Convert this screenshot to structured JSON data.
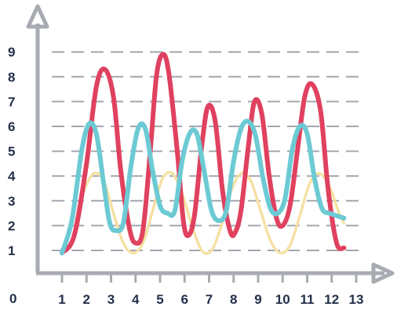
{
  "chart_data": {
    "type": "line",
    "title": "",
    "xlabel": "",
    "ylabel": "",
    "xlim": [
      0,
      13
    ],
    "ylim": [
      0,
      9
    ],
    "x_ticks": [
      1,
      2,
      3,
      4,
      5,
      6,
      7,
      8,
      9,
      10,
      11,
      12,
      13
    ],
    "y_ticks": [
      1,
      2,
      3,
      4,
      5,
      6,
      7,
      8,
      9
    ],
    "origin_label": "0",
    "grid": "horizontal-dashed",
    "legend": "none",
    "series": [
      {
        "color": "#e0415f",
        "points": [
          [
            1,
            0.9
          ],
          [
            1.5,
            1.6
          ],
          [
            2,
            4.5
          ],
          [
            2.4,
            7.6
          ],
          [
            2.75,
            8.3
          ],
          [
            3.1,
            7.2
          ],
          [
            3.4,
            4.2
          ],
          [
            3.75,
            1.9
          ],
          [
            4,
            1.3
          ],
          [
            4.3,
            1.8
          ],
          [
            4.6,
            5.0
          ],
          [
            4.85,
            8.0
          ],
          [
            5.1,
            8.9
          ],
          [
            5.35,
            8.2
          ],
          [
            5.7,
            5.0
          ],
          [
            5.95,
            2.2
          ],
          [
            6.15,
            1.6
          ],
          [
            6.4,
            2.4
          ],
          [
            6.7,
            5.2
          ],
          [
            6.95,
            6.8
          ],
          [
            7.25,
            6.2
          ],
          [
            7.55,
            3.4
          ],
          [
            7.85,
            1.8
          ],
          [
            8.05,
            1.7
          ],
          [
            8.3,
            2.6
          ],
          [
            8.6,
            5.2
          ],
          [
            8.85,
            7.0
          ],
          [
            9.15,
            6.5
          ],
          [
            9.45,
            4.0
          ],
          [
            9.75,
            2.3
          ],
          [
            10.0,
            2.0
          ],
          [
            10.3,
            2.8
          ],
          [
            10.6,
            5.0
          ],
          [
            10.9,
            7.2
          ],
          [
            11.2,
            7.7
          ],
          [
            11.55,
            6.6
          ],
          [
            11.85,
            3.5
          ],
          [
            12.2,
            1.3
          ],
          [
            12.5,
            1.1
          ]
        ]
      },
      {
        "color": "#6ccad4",
        "points": [
          [
            1,
            0.9
          ],
          [
            1.4,
            2.2
          ],
          [
            1.8,
            5.0
          ],
          [
            2.1,
            6.1
          ],
          [
            2.4,
            5.7
          ],
          [
            2.7,
            3.7
          ],
          [
            2.95,
            2.1
          ],
          [
            3.2,
            1.8
          ],
          [
            3.5,
            2.1
          ],
          [
            3.8,
            4.3
          ],
          [
            4.1,
            5.9
          ],
          [
            4.4,
            5.9
          ],
          [
            4.7,
            4.2
          ],
          [
            5.0,
            2.8
          ],
          [
            5.3,
            2.5
          ],
          [
            5.6,
            2.6
          ],
          [
            5.9,
            4.6
          ],
          [
            6.2,
            5.7
          ],
          [
            6.5,
            5.7
          ],
          [
            6.8,
            4.2
          ],
          [
            7.1,
            2.6
          ],
          [
            7.4,
            2.2
          ],
          [
            7.7,
            2.6
          ],
          [
            8.0,
            4.6
          ],
          [
            8.3,
            5.9
          ],
          [
            8.6,
            6.2
          ],
          [
            8.9,
            5.6
          ],
          [
            9.2,
            3.9
          ],
          [
            9.5,
            2.7
          ],
          [
            9.8,
            2.5
          ],
          [
            10.1,
            3.1
          ],
          [
            10.4,
            5.1
          ],
          [
            10.7,
            6.0
          ],
          [
            11.0,
            5.7
          ],
          [
            11.3,
            3.9
          ],
          [
            11.6,
            2.7
          ],
          [
            11.9,
            2.5
          ],
          [
            12.2,
            2.4
          ],
          [
            12.5,
            2.3
          ]
        ]
      },
      {
        "color": "#f5e1a4",
        "points": [
          [
            1.6,
            2.2
          ],
          [
            1.9,
            3.4
          ],
          [
            2.3,
            4.1
          ],
          [
            2.7,
            3.8
          ],
          [
            3.1,
            2.5
          ],
          [
            3.5,
            1.3
          ],
          [
            3.9,
            0.9
          ],
          [
            4.3,
            1.3
          ],
          [
            4.7,
            2.6
          ],
          [
            5.1,
            3.9
          ],
          [
            5.5,
            4.1
          ],
          [
            5.9,
            3.3
          ],
          [
            6.3,
            2.0
          ],
          [
            6.7,
            1.0
          ],
          [
            7.1,
            1.0
          ],
          [
            7.5,
            2.0
          ],
          [
            7.9,
            3.4
          ],
          [
            8.3,
            4.1
          ],
          [
            8.7,
            3.8
          ],
          [
            9.1,
            2.6
          ],
          [
            9.5,
            1.4
          ],
          [
            9.9,
            0.9
          ],
          [
            10.3,
            1.2
          ],
          [
            10.7,
            2.4
          ],
          [
            11.1,
            3.7
          ],
          [
            11.5,
            4.1
          ],
          [
            11.9,
            3.6
          ],
          [
            12.3,
            2.5
          ],
          [
            12.5,
            2.1
          ]
        ]
      }
    ]
  },
  "colors": {
    "axis": "#a9abb3",
    "grid": "#a3a6ad",
    "tick_text": "#24304a"
  }
}
